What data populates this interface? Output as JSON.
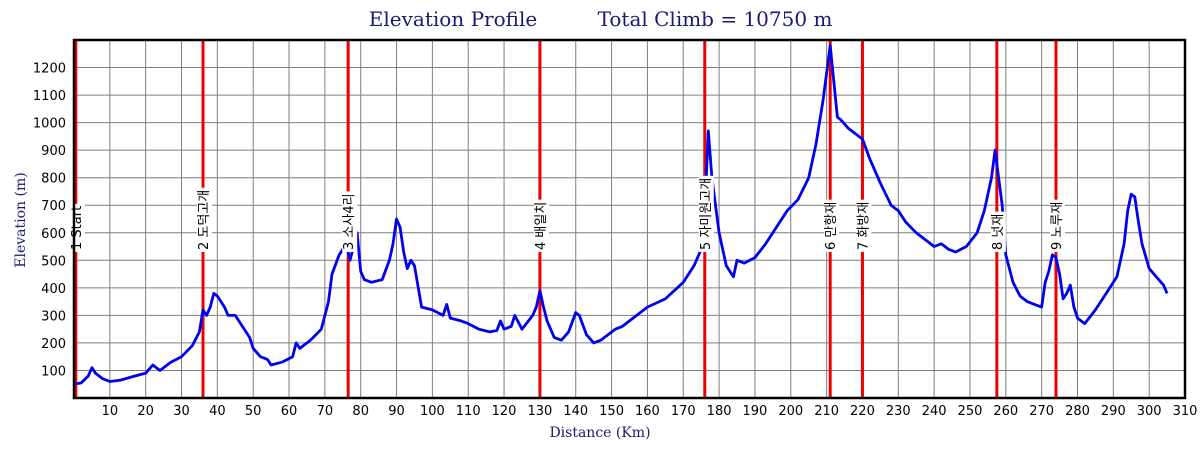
{
  "chart_data": {
    "type": "line",
    "title": "Elevation Profile",
    "subtitle": "Total Climb = 10750 m",
    "xlabel": "Distance (Km)",
    "ylabel": "Elevation (m)",
    "xlim": [
      0,
      310
    ],
    "ylim": [
      0,
      1300
    ],
    "x_ticks": [
      10,
      20,
      30,
      40,
      50,
      60,
      70,
      80,
      90,
      100,
      110,
      120,
      130,
      140,
      150,
      160,
      170,
      180,
      190,
      200,
      210,
      220,
      230,
      240,
      250,
      260,
      270,
      280,
      290,
      300,
      310
    ],
    "y_ticks": [
      100,
      200,
      300,
      400,
      500,
      600,
      700,
      800,
      900,
      1000,
      1100,
      1200
    ],
    "grid": true,
    "series": [
      {
        "name": "Elevation",
        "color": "#0000ee",
        "x": [
          0,
          2,
          4,
          5,
          6,
          8,
          10,
          13,
          17,
          20,
          22,
          24,
          27,
          30,
          33,
          35,
          36,
          37,
          38,
          39,
          40,
          42,
          43,
          45,
          47,
          49,
          50,
          52,
          54,
          55,
          58,
          61,
          62,
          63,
          66,
          69,
          71,
          72,
          74,
          76,
          77,
          79,
          80,
          81,
          83,
          86,
          88,
          89,
          90,
          91,
          92,
          93,
          94,
          95,
          97,
          100,
          103,
          104,
          105,
          108,
          110,
          113,
          116,
          118,
          119,
          120,
          122,
          123,
          125,
          128,
          129,
          130,
          131,
          132,
          134,
          136,
          138,
          140,
          141,
          143,
          145,
          147,
          149,
          151,
          153,
          155,
          160,
          165,
          170,
          173,
          175,
          176,
          177,
          178,
          180,
          182,
          184,
          185,
          187,
          190,
          193,
          196,
          199,
          202,
          205,
          207,
          209,
          210,
          211,
          212,
          213,
          214,
          216,
          218,
          220,
          222,
          225,
          228,
          230,
          232,
          235,
          238,
          240,
          242,
          244,
          246,
          249,
          252,
          254,
          256,
          257,
          258,
          259,
          260,
          262,
          264,
          266,
          268,
          270,
          271,
          272,
          273,
          274,
          275,
          276,
          277,
          278,
          279,
          280,
          282,
          285,
          288,
          291,
          293,
          294,
          295,
          296,
          297,
          298,
          300,
          302,
          304,
          305
        ],
        "values": [
          50,
          55,
          80,
          110,
          90,
          70,
          60,
          65,
          80,
          90,
          120,
          100,
          130,
          150,
          190,
          240,
          320,
          300,
          330,
          380,
          370,
          330,
          300,
          300,
          260,
          220,
          180,
          150,
          140,
          120,
          130,
          150,
          200,
          180,
          210,
          250,
          350,
          450,
          520,
          560,
          500,
          600,
          460,
          430,
          420,
          430,
          500,
          560,
          650,
          620,
          530,
          470,
          500,
          480,
          330,
          320,
          300,
          340,
          290,
          280,
          270,
          250,
          240,
          245,
          280,
          250,
          260,
          300,
          250,
          300,
          330,
          390,
          330,
          280,
          220,
          210,
          240,
          310,
          300,
          230,
          200,
          210,
          230,
          250,
          260,
          280,
          330,
          360,
          420,
          480,
          540,
          680,
          970,
          800,
          600,
          480,
          440,
          500,
          490,
          510,
          560,
          620,
          680,
          720,
          800,
          920,
          1080,
          1180,
          1280,
          1150,
          1020,
          1010,
          980,
          960,
          940,
          870,
          780,
          700,
          680,
          640,
          600,
          570,
          550,
          560,
          540,
          530,
          550,
          600,
          680,
          800,
          900,
          800,
          700,
          520,
          420,
          370,
          350,
          340,
          330,
          420,
          460,
          520,
          510,
          450,
          360,
          380,
          410,
          330,
          290,
          270,
          320,
          380,
          440,
          560,
          680,
          740,
          730,
          640,
          560,
          470,
          440,
          410,
          380
        ]
      }
    ],
    "waypoints": [
      {
        "x": 0.5,
        "label": "1 Start"
      },
      {
        "x": 36,
        "label": "2 도덕고개"
      },
      {
        "x": 76.5,
        "label": "3 소사4리"
      },
      {
        "x": 130,
        "label": "4 배일치"
      },
      {
        "x": 176,
        "label": "5 자미원고개"
      },
      {
        "x": 211,
        "label": "6 만항재"
      },
      {
        "x": 220,
        "label": "7 화방재"
      },
      {
        "x": 257.5,
        "label": "8 넛재"
      },
      {
        "x": 274,
        "label": "9 노루재"
      }
    ]
  },
  "colors": {
    "line": "#0000ee",
    "waypoint": "#ee0000",
    "grid": "#7f7f7f",
    "title": "#1a1a6e"
  }
}
